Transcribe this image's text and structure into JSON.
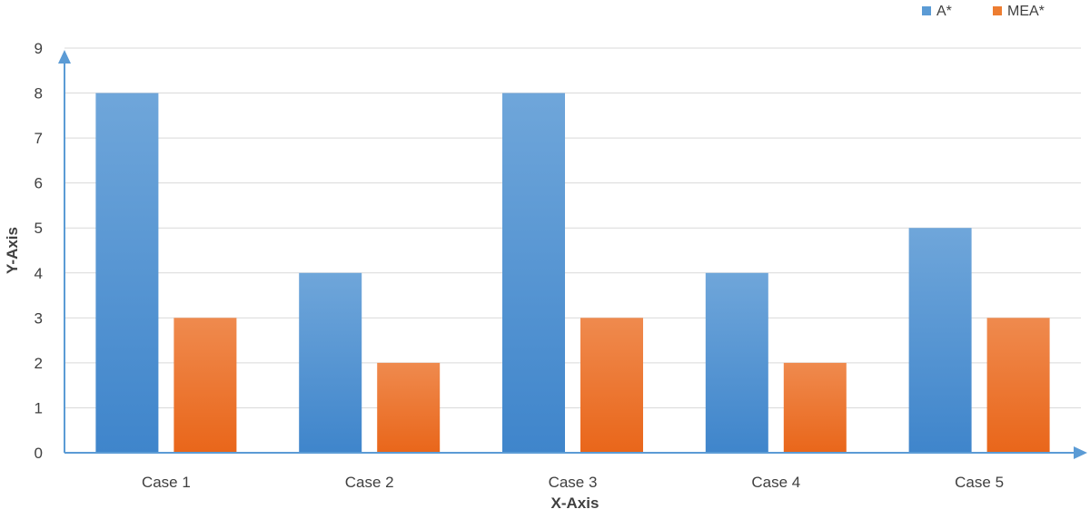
{
  "chart_data": {
    "type": "bar",
    "title": "",
    "xlabel": "X-Axis",
    "ylabel": "Y-Axis",
    "categories": [
      "Case 1",
      "Case 2",
      "Case 3",
      "Case 4",
      "Case 5"
    ],
    "series": [
      {
        "name": "A*",
        "values": [
          8,
          4,
          8,
          4,
          5
        ],
        "color": "#5B9BD5"
      },
      {
        "name": "MEA*",
        "values": [
          3,
          2,
          3,
          2,
          3
        ],
        "color": "#ED7D31"
      }
    ],
    "ylim": [
      0,
      9
    ],
    "yticks": [
      "0",
      "1",
      "2",
      "3",
      "4",
      "5",
      "6",
      "7",
      "8",
      "9"
    ],
    "grid": true,
    "legend_position": "top-right",
    "axis_color": "#5B9BD5"
  }
}
